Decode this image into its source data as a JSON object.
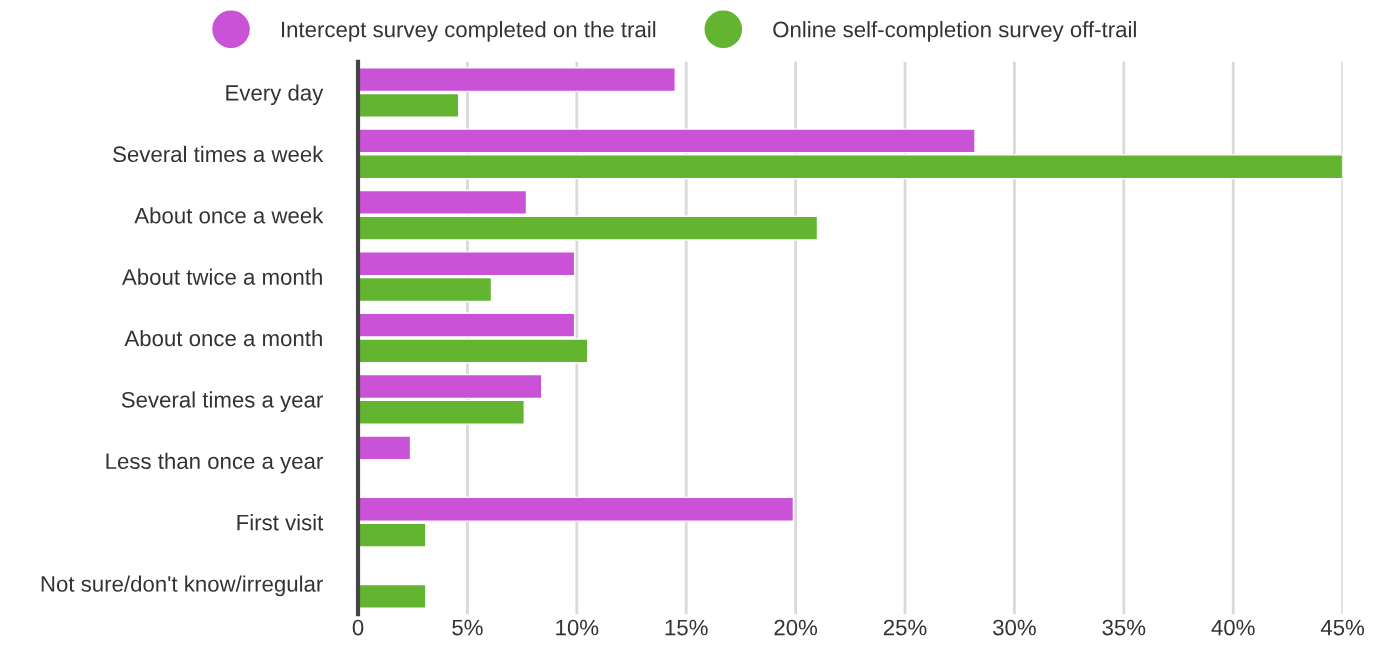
{
  "chart_data": {
    "type": "bar",
    "orientation": "horizontal",
    "categories": [
      "Every day",
      "Several times a week",
      "About once a week",
      "About twice a month",
      "About once a month",
      "Several times a year",
      "Less than once a year",
      "First visit",
      "Not sure/don't know/irregular"
    ],
    "series": [
      {
        "name": "Intercept survey completed on the trail",
        "color": "#c952d6",
        "values": [
          14.5,
          28.2,
          7.7,
          9.9,
          9.9,
          8.4,
          2.4,
          19.9,
          null
        ]
      },
      {
        "name": "Online self-completion survey off-trail",
        "color": "#62b431",
        "values": [
          4.6,
          45,
          21.0,
          6.1,
          10.5,
          7.6,
          null,
          3.1,
          3.1
        ]
      }
    ],
    "xlim": [
      0,
      45
    ],
    "xticks": [
      {
        "value": 0,
        "label": "0"
      },
      {
        "value": 5,
        "label": "5%"
      },
      {
        "value": 10,
        "label": "10%"
      },
      {
        "value": 15,
        "label": "15%"
      },
      {
        "value": 20,
        "label": "20%"
      },
      {
        "value": 25,
        "label": "25%"
      },
      {
        "value": 30,
        "label": "30%"
      },
      {
        "value": 35,
        "label": "35%"
      },
      {
        "value": 40,
        "label": "40%"
      },
      {
        "value": 45,
        "label": "45%"
      }
    ],
    "grid": "x",
    "legend": "top"
  }
}
